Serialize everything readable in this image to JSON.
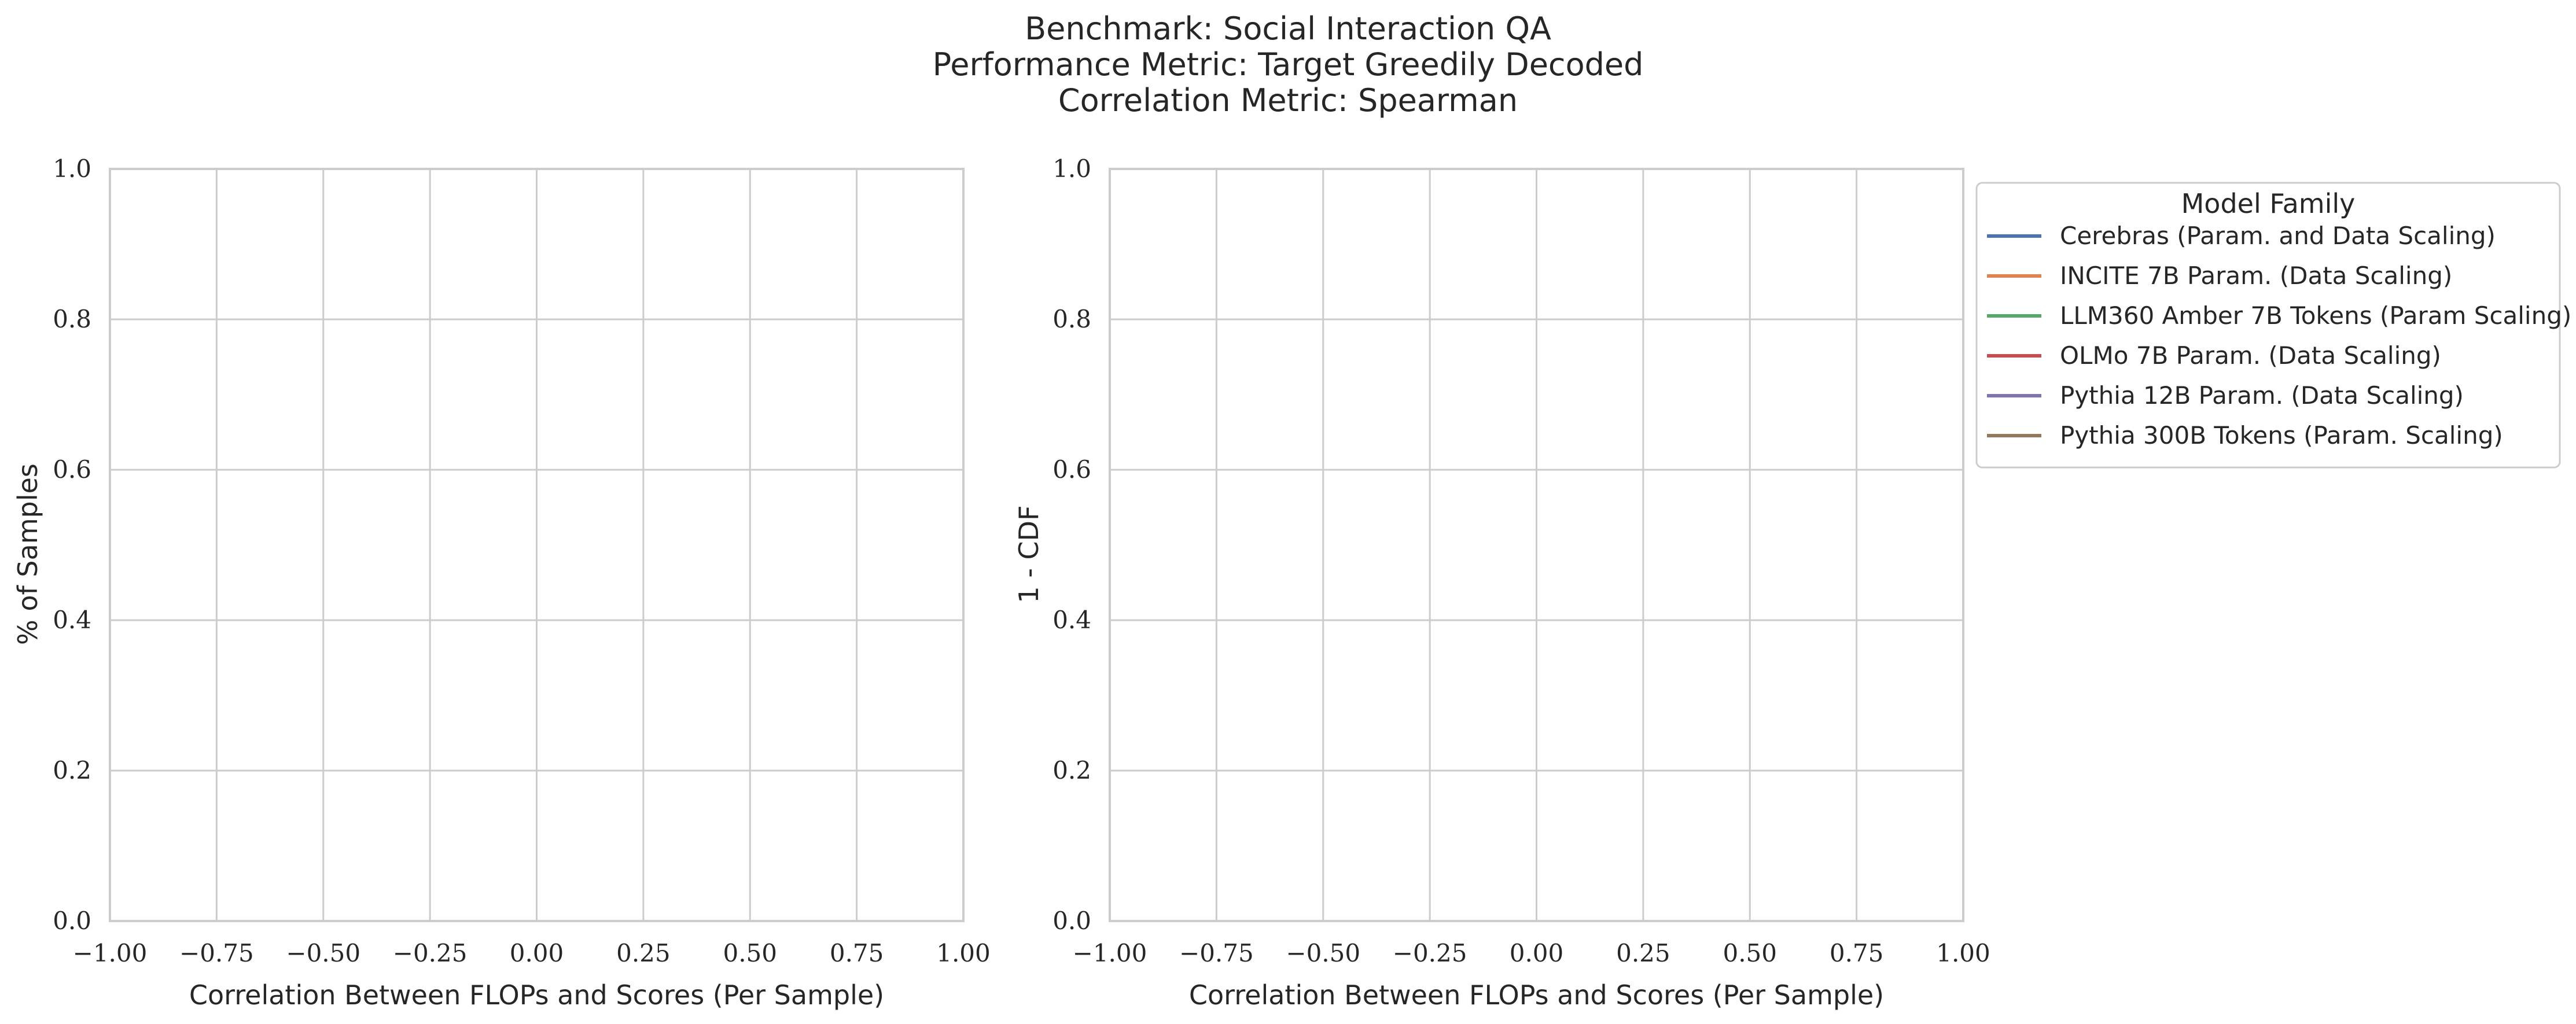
{
  "title_lines": [
    "Benchmark: Social Interaction QA",
    "Performance Metric: Target Greedily Decoded",
    "Correlation Metric: Spearman"
  ],
  "chart_data": [
    {
      "type": "histogram",
      "xlabel": "Correlation Between FLOPs and Scores (Per Sample)",
      "ylabel": "% of Samples",
      "xlim": [
        -1.0,
        1.0
      ],
      "ylim": [
        0.0,
        1.0
      ],
      "xticks": [
        "−1.00",
        "−0.75",
        "−0.50",
        "−0.25",
        "0.00",
        "0.25",
        "0.50",
        "0.75",
        "1.00"
      ],
      "yticks": [
        "0.0",
        "0.2",
        "0.4",
        "0.6",
        "0.8",
        "1.0"
      ],
      "xtick_values": [
        -1.0,
        -0.75,
        -0.5,
        -0.25,
        0.0,
        0.25,
        0.5,
        0.75,
        1.0
      ],
      "ytick_values": [
        0.0,
        0.2,
        0.4,
        0.6,
        0.8,
        1.0
      ],
      "grid": true,
      "series": []
    },
    {
      "type": "line",
      "xlabel": "Correlation Between FLOPs and Scores (Per Sample)",
      "ylabel": "1 - CDF",
      "xlim": [
        -1.0,
        1.0
      ],
      "ylim": [
        0.0,
        1.0
      ],
      "xticks": [
        "−1.00",
        "−0.75",
        "−0.50",
        "−0.25",
        "0.00",
        "0.25",
        "0.50",
        "0.75",
        "1.00"
      ],
      "yticks": [
        "0.0",
        "0.2",
        "0.4",
        "0.6",
        "0.8",
        "1.0"
      ],
      "xtick_values": [
        -1.0,
        -0.75,
        -0.5,
        -0.25,
        0.0,
        0.25,
        0.5,
        0.75,
        1.0
      ],
      "ytick_values": [
        0.0,
        0.2,
        0.4,
        0.6,
        0.8,
        1.0
      ],
      "grid": true,
      "legend_placement": "outside-right-top",
      "series": [
        {
          "name": "Cerebras (Param. and Data Scaling)",
          "color": "#4c72b0",
          "x": [],
          "y": []
        },
        {
          "name": "INCITE 7B Param. (Data Scaling)",
          "color": "#dd8452",
          "x": [],
          "y": []
        },
        {
          "name": "LLM360 Amber 7B Tokens (Param Scaling)",
          "color": "#55a868",
          "x": [],
          "y": []
        },
        {
          "name": "OLMo 7B Param. (Data Scaling)",
          "color": "#c44e52",
          "x": [],
          "y": []
        },
        {
          "name": "Pythia 12B Param. (Data Scaling)",
          "color": "#8172b3",
          "x": [],
          "y": []
        },
        {
          "name": "Pythia 300B Tokens (Param. Scaling)",
          "color": "#937860",
          "x": [],
          "y": []
        }
      ]
    }
  ],
  "legend": {
    "title": "Model Family"
  }
}
